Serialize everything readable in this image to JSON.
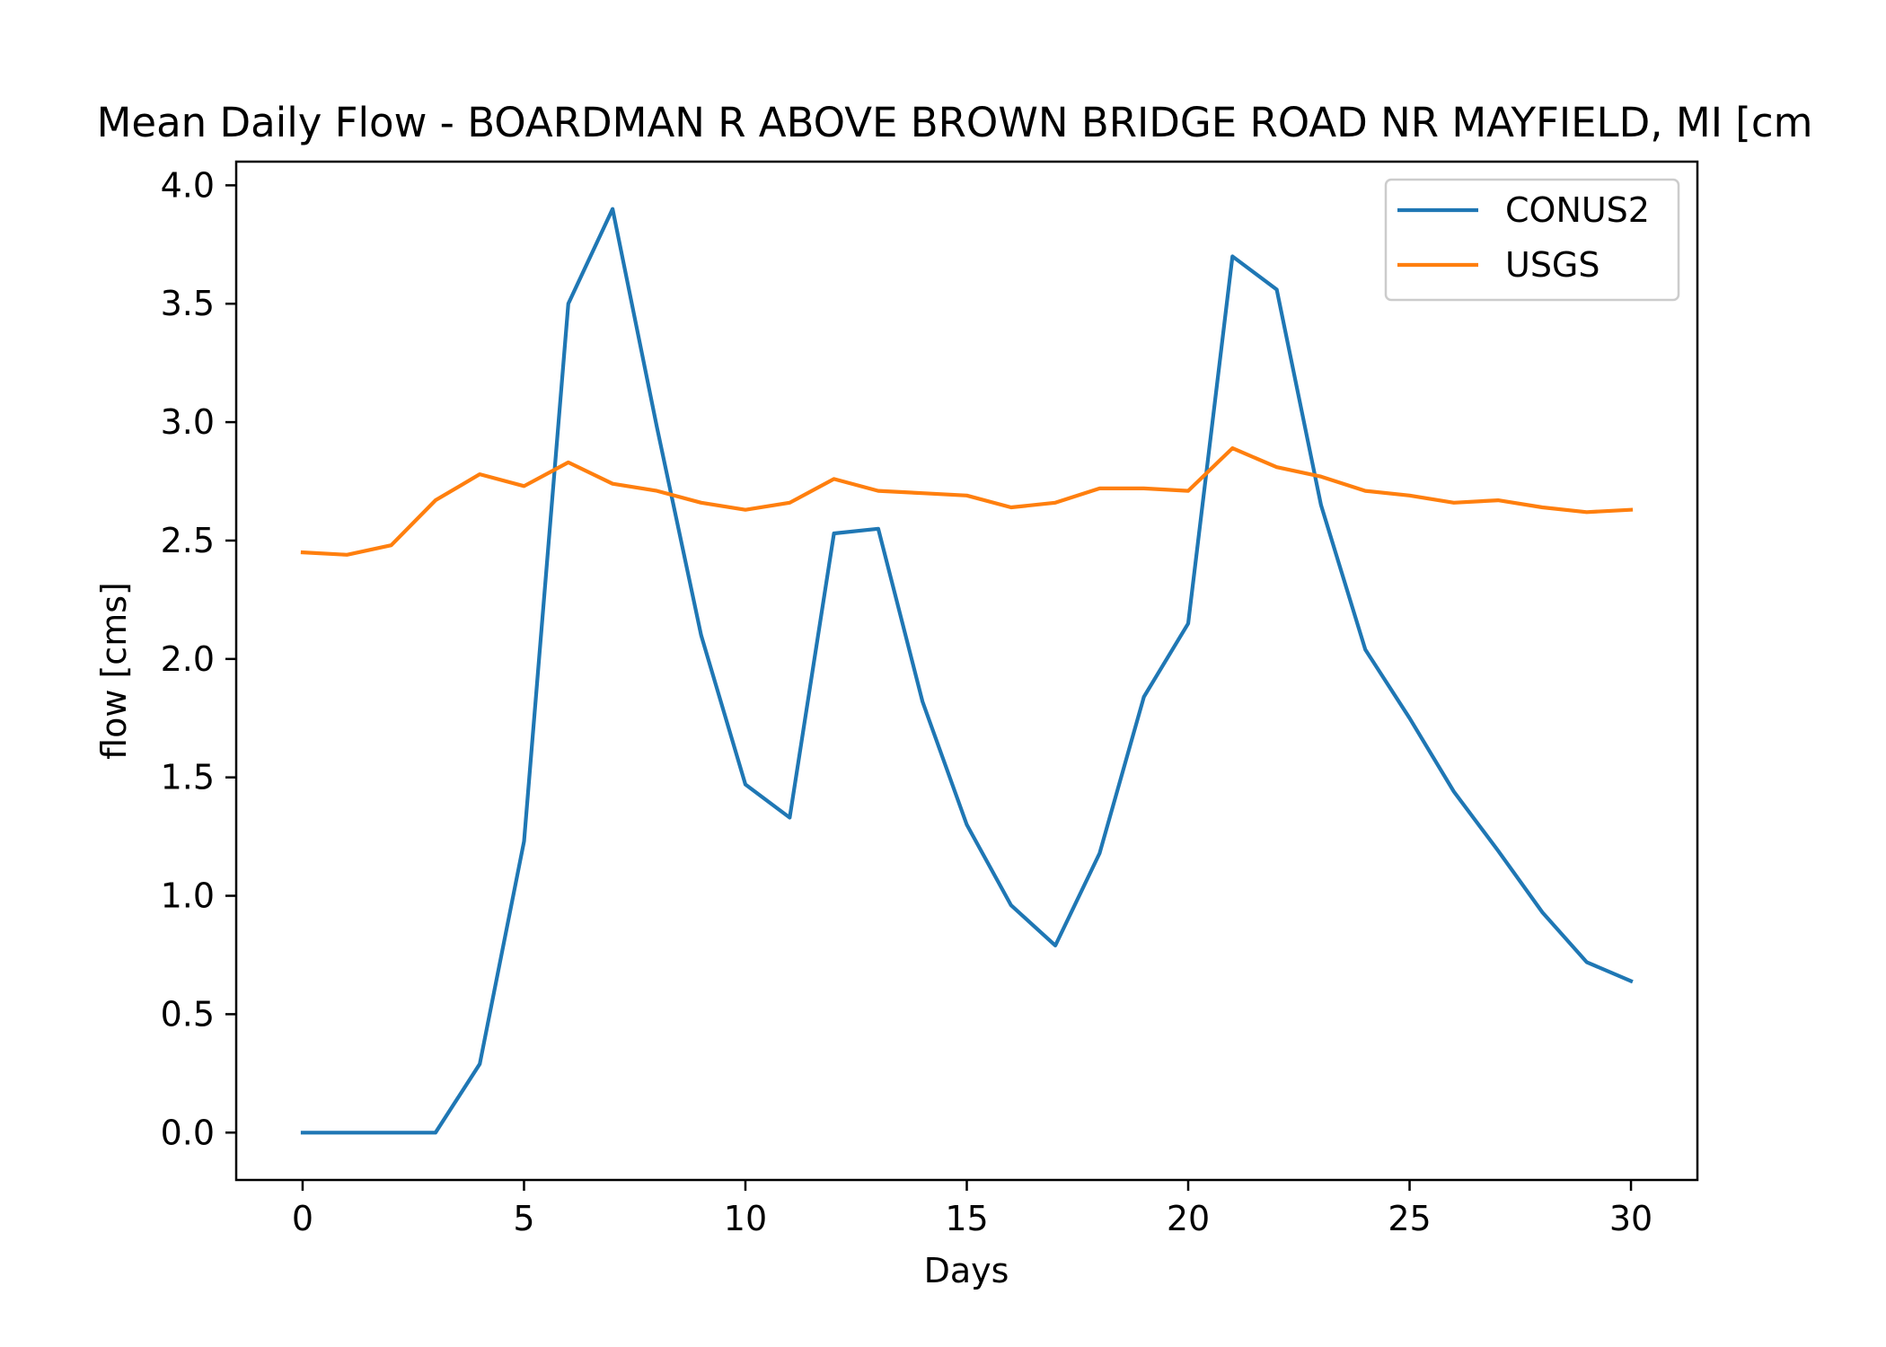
{
  "chart_data": {
    "type": "line",
    "title": "Mean Daily Flow - BOARDMAN R ABOVE BROWN BRIDGE ROAD NR MAYFIELD, MI [cm",
    "xlabel": "Days",
    "ylabel": "flow [cms]",
    "xlim": [
      -1.5,
      31.5
    ],
    "ylim": [
      -0.2,
      4.1
    ],
    "xticks": [
      0,
      5,
      10,
      15,
      20,
      25,
      30
    ],
    "xtick_labels": [
      "0",
      "5",
      "10",
      "15",
      "20",
      "25",
      "30"
    ],
    "yticks": [
      0.0,
      0.5,
      1.0,
      1.5,
      2.0,
      2.5,
      3.0,
      3.5,
      4.0
    ],
    "ytick_labels": [
      "0.0",
      "0.5",
      "1.0",
      "1.5",
      "2.0",
      "2.5",
      "3.0",
      "3.5",
      "4.0"
    ],
    "grid": false,
    "legend_position": "upper right",
    "x": [
      0,
      1,
      2,
      3,
      4,
      5,
      6,
      7,
      8,
      9,
      10,
      11,
      12,
      13,
      14,
      15,
      16,
      17,
      18,
      19,
      20,
      21,
      22,
      23,
      24,
      25,
      26,
      27,
      28,
      29,
      30
    ],
    "series": [
      {
        "name": "CONUS2",
        "color": "#1f77b4",
        "values": [
          0.0,
          0.0,
          0.0,
          0.0,
          0.29,
          1.23,
          3.5,
          3.9,
          2.98,
          2.1,
          1.47,
          1.33,
          2.53,
          2.55,
          1.82,
          1.3,
          0.96,
          0.79,
          1.18,
          1.84,
          2.15,
          3.7,
          3.56,
          2.65,
          2.04,
          1.75,
          1.44,
          1.19,
          0.93,
          0.72,
          0.64
        ]
      },
      {
        "name": "USGS",
        "color": "#ff7f0e",
        "values": [
          2.45,
          2.44,
          2.48,
          2.67,
          2.78,
          2.73,
          2.83,
          2.74,
          2.71,
          2.66,
          2.63,
          2.66,
          2.76,
          2.71,
          2.7,
          2.69,
          2.64,
          2.66,
          2.72,
          2.72,
          2.71,
          2.89,
          2.81,
          2.77,
          2.71,
          2.69,
          2.66,
          2.67,
          2.64,
          2.62,
          2.63
        ]
      }
    ]
  }
}
